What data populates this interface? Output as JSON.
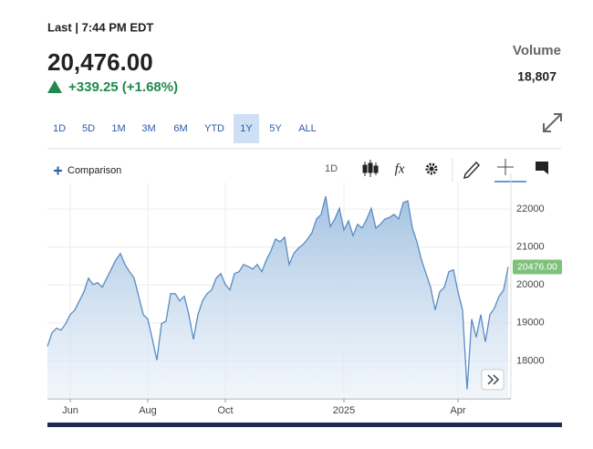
{
  "header": {
    "last_label": "Last | 7:44 PM EDT",
    "price": "20,476.00",
    "change": "+339.25 (+1.68%)",
    "volume_label": "Volume",
    "volume": "18,807"
  },
  "ranges": [
    "1D",
    "5D",
    "1M",
    "3M",
    "6M",
    "YTD",
    "1Y",
    "5Y",
    "ALL"
  ],
  "selected_range": "1Y",
  "toolbar": {
    "comparison": "Comparison",
    "interval": "1D",
    "fx": "fx"
  },
  "chart_data": {
    "type": "line",
    "categories": [
      null,
      null,
      null,
      null,
      null,
      "Jun",
      null,
      null,
      null,
      null,
      null,
      null,
      null,
      null,
      null,
      null,
      null,
      null,
      null,
      null,
      null,
      null,
      "Aug",
      null,
      null,
      null,
      null,
      null,
      null,
      null,
      null,
      null,
      null,
      null,
      null,
      null,
      null,
      null,
      null,
      "Oct",
      null,
      null,
      null,
      null,
      null,
      null,
      null,
      null,
      null,
      null,
      null,
      null,
      null,
      null,
      null,
      null,
      null,
      null,
      null,
      null,
      null,
      null,
      null,
      null,
      null,
      "2025",
      null,
      null,
      null,
      null,
      null,
      null,
      null,
      null,
      null,
      null,
      null,
      null,
      null,
      null,
      null,
      null,
      null,
      null,
      null,
      null,
      null,
      null,
      null,
      null,
      "Apr",
      null,
      null,
      null,
      null,
      null,
      null,
      null,
      null,
      null,
      null,
      null
    ],
    "series": [
      {
        "color": "#5a8cc2",
        "values": [
          18380,
          18740,
          18860,
          18810,
          18980,
          19220,
          19340,
          19580,
          19820,
          20180,
          20010,
          20060,
          19940,
          20180,
          20420,
          20660,
          20830,
          20540,
          20350,
          20180,
          19700,
          19220,
          19100,
          18570,
          18020,
          18980,
          19050,
          19770,
          19770,
          19580,
          19700,
          19220,
          18570,
          19220,
          19580,
          19770,
          19870,
          20180,
          20300,
          20010,
          19870,
          20300,
          20350,
          20540,
          20490,
          20420,
          20540,
          20350,
          20660,
          20900,
          21210,
          21140,
          21260,
          20540,
          20830,
          20970,
          21060,
          21210,
          21380,
          21740,
          21860,
          22340,
          21540,
          21740,
          22020,
          21450,
          21690,
          21300,
          21600,
          21500,
          21740,
          22020,
          21500,
          21600,
          21740,
          21780,
          21860,
          21740,
          22170,
          22220,
          21500,
          21140,
          20660,
          20300,
          19940,
          19340,
          19820,
          19940,
          20350,
          20400,
          19820,
          19340,
          17250,
          19100,
          18620,
          19220,
          18500,
          19220,
          19390,
          19700,
          19870,
          20476
        ]
      }
    ],
    "price_tag": "20476.00",
    "tag_color": "#7cc27a",
    "ylim": [
      17000,
      22700
    ],
    "yticks": [
      18000,
      19000,
      20000,
      21000,
      22000
    ],
    "grid": true
  }
}
